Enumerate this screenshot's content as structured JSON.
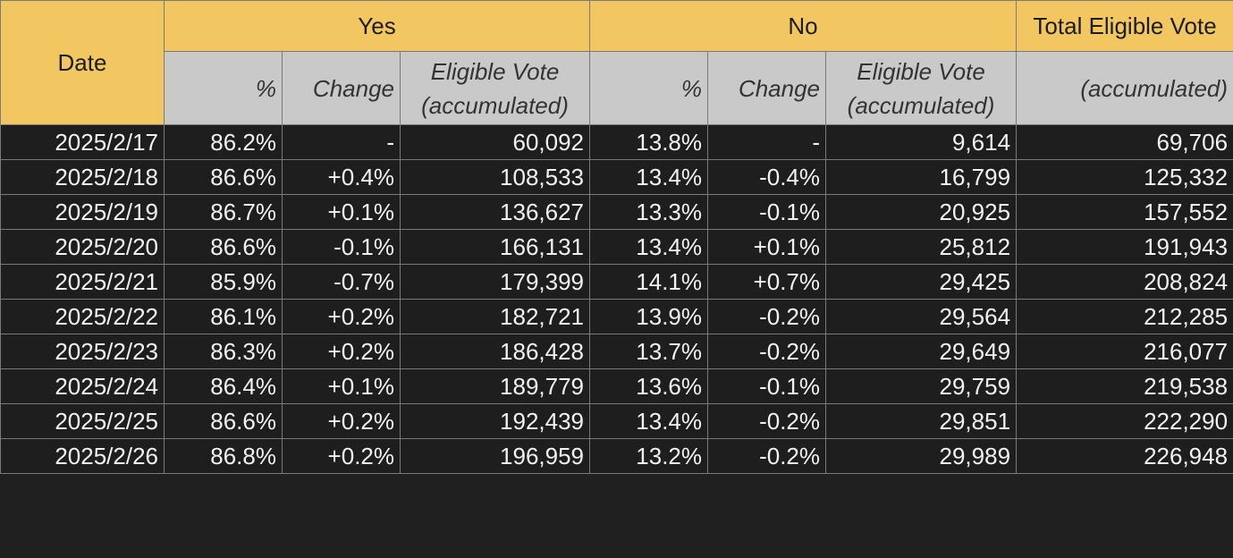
{
  "table": {
    "header": {
      "date": "Date",
      "yes": "Yes",
      "no": "No",
      "total": "Total Eligible Vote",
      "yes_sub": [
        "%",
        "Change",
        [
          "Eligible Vote",
          "(accumulated)"
        ]
      ],
      "no_sub": [
        "%",
        "Change",
        [
          "Eligible Vote",
          "(accumulated)"
        ]
      ],
      "total_sub": "(accumulated)"
    },
    "rows": [
      [
        "2025/2/17",
        "86.2%",
        "-",
        "60,092",
        "13.8%",
        "-",
        "9,614",
        "69,706"
      ],
      [
        "2025/2/18",
        "86.6%",
        "+0.4%",
        "108,533",
        "13.4%",
        "-0.4%",
        "16,799",
        "125,332"
      ],
      [
        "2025/2/19",
        "86.7%",
        "+0.1%",
        "136,627",
        "13.3%",
        "-0.1%",
        "20,925",
        "157,552"
      ],
      [
        "2025/2/20",
        "86.6%",
        "-0.1%",
        "166,131",
        "13.4%",
        "+0.1%",
        "25,812",
        "191,943"
      ],
      [
        "2025/2/21",
        "85.9%",
        "-0.7%",
        "179,399",
        "14.1%",
        "+0.7%",
        "29,425",
        "208,824"
      ],
      [
        "2025/2/22",
        "86.1%",
        "+0.2%",
        "182,721",
        "13.9%",
        "-0.2%",
        "29,564",
        "212,285"
      ],
      [
        "2025/2/23",
        "86.3%",
        "+0.2%",
        "186,428",
        "13.7%",
        "-0.2%",
        "29,649",
        "216,077"
      ],
      [
        "2025/2/24",
        "86.4%",
        "+0.1%",
        "189,779",
        "13.6%",
        "-0.1%",
        "29,759",
        "219,538"
      ],
      [
        "2025/2/25",
        "86.6%",
        "+0.2%",
        "192,439",
        "13.4%",
        "-0.2%",
        "29,851",
        "222,290"
      ],
      [
        "2025/2/26",
        "86.8%",
        "+0.2%",
        "196,959",
        "13.2%",
        "-0.2%",
        "29,989",
        "226,948"
      ]
    ]
  }
}
